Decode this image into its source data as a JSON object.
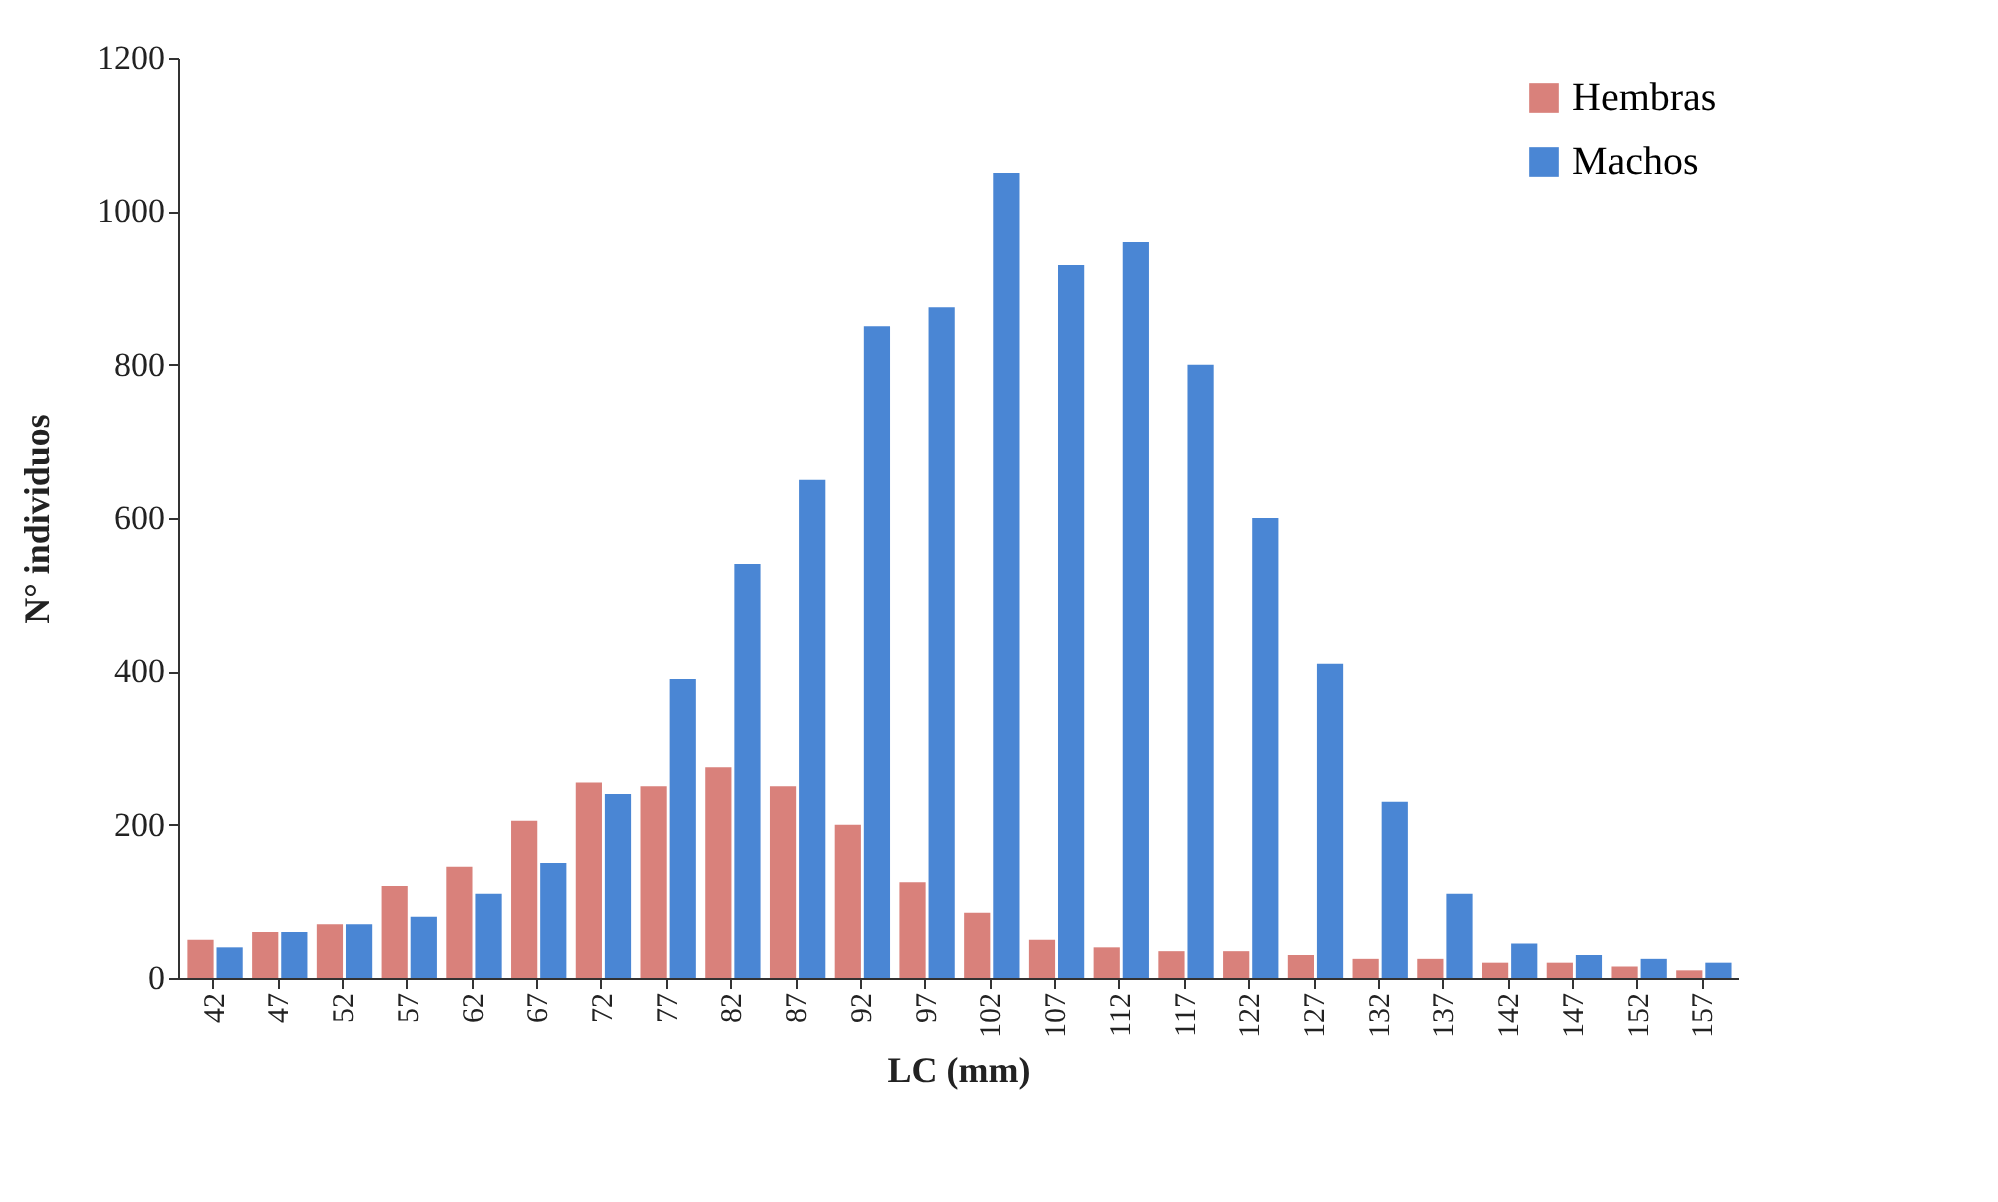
{
  "chart_data": {
    "type": "bar",
    "xlabel": "LC (mm)",
    "ylabel": "N° individuos",
    "categories": [
      "42",
      "47",
      "52",
      "57",
      "62",
      "67",
      "72",
      "77",
      "82",
      "87",
      "92",
      "97",
      "102",
      "107",
      "112",
      "117",
      "122",
      "127",
      "132",
      "137",
      "142",
      "147",
      "152",
      "157"
    ],
    "series": [
      {
        "name": "Hembras",
        "color": "#d9817b",
        "values": [
          50,
          60,
          70,
          120,
          145,
          205,
          255,
          250,
          275,
          250,
          200,
          125,
          85,
          50,
          40,
          35,
          35,
          30,
          25,
          25,
          20,
          20,
          15,
          10
        ]
      },
      {
        "name": "Machos",
        "color": "#4a86d4",
        "values": [
          40,
          60,
          70,
          80,
          110,
          150,
          240,
          390,
          540,
          650,
          850,
          875,
          1050,
          930,
          960,
          800,
          600,
          410,
          230,
          110,
          45,
          30,
          25,
          20
        ]
      }
    ],
    "ylim": [
      0,
      1200
    ],
    "yticks": [
      0,
      200,
      400,
      600,
      800,
      1000,
      1200
    ],
    "grid": false,
    "legend": "top right"
  }
}
